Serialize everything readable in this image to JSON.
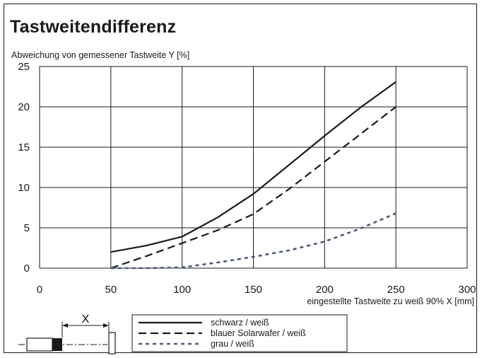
{
  "chart_data": {
    "type": "line",
    "title": "Tastweitendifferenz",
    "ylabel": "Abweichung von gemessener Tastweite Y [%]",
    "xlabel": "eingestellte Tastweite zu weiß 90% X [mm]",
    "xlim": [
      0,
      300
    ],
    "ylim": [
      0,
      25
    ],
    "xticks": [
      "0",
      "50",
      "100",
      "150",
      "200",
      "250",
      "300"
    ],
    "yticks": [
      "0",
      "5",
      "10",
      "15",
      "20",
      "25"
    ],
    "grid": true,
    "series": [
      {
        "name": "schwarz / weiß",
        "style": "solid",
        "color": "#1a1a1a",
        "x": [
          50,
          75,
          100,
          125,
          150,
          175,
          200,
          225,
          250
        ],
        "y": [
          2.0,
          2.8,
          3.9,
          6.3,
          9.2,
          12.8,
          16.4,
          19.9,
          23.1
        ]
      },
      {
        "name": "blauer Solarwafer / weiß",
        "style": "dashed",
        "color": "#1a1a1a",
        "x": [
          50,
          75,
          100,
          125,
          150,
          175,
          200,
          225,
          250
        ],
        "y": [
          0.0,
          1.5,
          3.1,
          4.7,
          6.7,
          9.8,
          13.2,
          16.6,
          20.0
        ]
      },
      {
        "name": "grau / weiß",
        "style": "dotted",
        "color": "#4a5a78",
        "x": [
          50,
          75,
          100,
          125,
          150,
          175,
          200,
          225,
          250
        ],
        "y": [
          0.0,
          0.0,
          0.1,
          0.7,
          1.4,
          2.2,
          3.3,
          4.9,
          6.8
        ]
      }
    ]
  },
  "diagram": {
    "distance_label": "X"
  }
}
